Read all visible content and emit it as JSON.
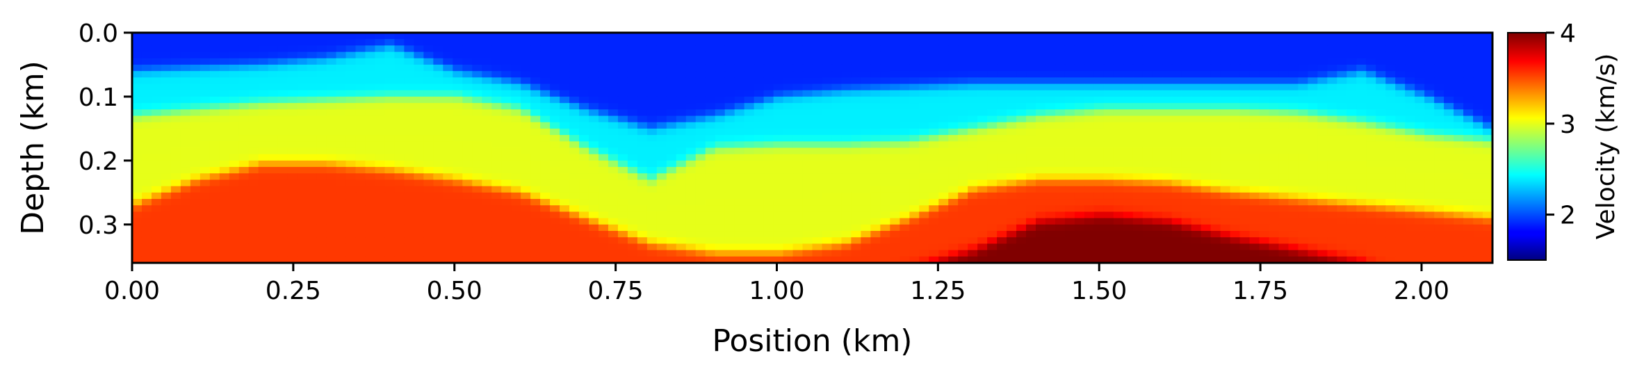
{
  "chart_data": {
    "type": "heatmap",
    "title": "",
    "xlabel": "Position (km)",
    "ylabel": "Depth (km)",
    "xlim": [
      0.0,
      2.11
    ],
    "ylim": [
      0.0,
      0.36
    ],
    "y_inverted": true,
    "x_ticks": [
      "0.00",
      "0.25",
      "0.50",
      "0.75",
      "1.00",
      "1.25",
      "1.50",
      "1.75",
      "2.00"
    ],
    "y_ticks": [
      "0.0",
      "0.1",
      "0.2",
      "0.3"
    ],
    "colormap": "jet",
    "colorbar": {
      "label": "Velocity (km/s)",
      "vmin": 1.5,
      "vmax": 4.0,
      "ticks": [
        "2",
        "3",
        "4"
      ],
      "placement": "right"
    },
    "grid": false,
    "layers": [
      {
        "name": "layer-1",
        "velocity": 1.9,
        "top_depth": [
          0,
          0,
          0,
          0,
          0,
          0,
          0,
          0,
          0,
          0,
          0,
          0,
          0,
          0,
          0,
          0,
          0,
          0,
          0,
          0,
          0,
          0
        ]
      },
      {
        "name": "layer-2",
        "velocity": 2.4,
        "top_depth": [
          0.06,
          0.055,
          0.05,
          0.04,
          0.02,
          0.06,
          0.08,
          0.12,
          0.15,
          0.13,
          0.1,
          0.09,
          0.085,
          0.08,
          0.08,
          0.08,
          0.08,
          0.08,
          0.08,
          0.06,
          0.1,
          0.15
        ]
      },
      {
        "name": "layer-3",
        "velocity": 3.0,
        "top_depth": [
          0.13,
          0.12,
          0.11,
          0.105,
          0.1,
          0.1,
          0.12,
          0.18,
          0.23,
          0.18,
          0.175,
          0.175,
          0.17,
          0.15,
          0.13,
          0.12,
          0.12,
          0.12,
          0.125,
          0.14,
          0.16,
          0.17
        ]
      },
      {
        "name": "layer-4",
        "velocity": 3.55,
        "top_depth": [
          0.27,
          0.23,
          0.205,
          0.205,
          0.215,
          0.23,
          0.25,
          0.29,
          0.33,
          0.345,
          0.345,
          0.33,
          0.29,
          0.245,
          0.23,
          0.23,
          0.235,
          0.25,
          0.26,
          0.27,
          0.28,
          0.29
        ]
      },
      {
        "name": "layer-5",
        "velocity": 4.0,
        "top_depth": [
          0.4,
          0.4,
          0.4,
          0.4,
          0.4,
          0.4,
          0.4,
          0.4,
          0.4,
          0.4,
          0.4,
          0.4,
          0.37,
          0.34,
          0.295,
          0.285,
          0.295,
          0.32,
          0.34,
          0.36,
          0.4,
          0.4
        ]
      }
    ]
  }
}
